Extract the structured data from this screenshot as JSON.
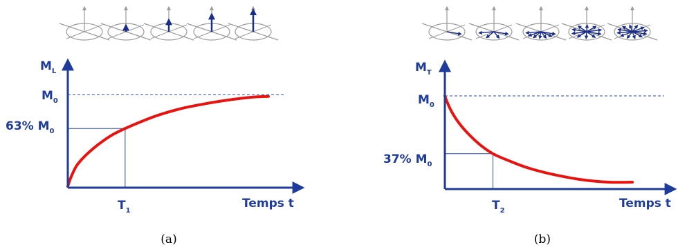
{
  "colors": {
    "axis": "#1f3b9b",
    "curve": "#e8130f",
    "guide": "#2a48b0",
    "dashed": "#2a48b0",
    "icon": "#9a9a9a",
    "vector": "#1a2d8a"
  },
  "chart_data": [
    {
      "type": "line",
      "panel_caption": "(a)",
      "ylabel_main": "M",
      "ylabel_sub": "L",
      "xlabel": "Temps t",
      "asymptote_label_main": "M",
      "asymptote_label_sub": "0",
      "marker_y_label_prefix": "63% M",
      "marker_y_label_sub": "0",
      "marker_x_label_main": "T",
      "marker_x_label_sub": "1",
      "asymptote_value": 1.0,
      "marker": {
        "x": 1.0,
        "y": 0.63
      },
      "xlim": [
        0,
        3.5
      ],
      "ylim": [
        0,
        1.08
      ],
      "curve_x": [
        0,
        0.05,
        0.15,
        0.3,
        0.5,
        0.75,
        1.0,
        1.3,
        1.6,
        2.0,
        2.4,
        2.8,
        3.2,
        3.5
      ],
      "curve_y": [
        0,
        0.09,
        0.22,
        0.33,
        0.44,
        0.55,
        0.63,
        0.71,
        0.78,
        0.85,
        0.9,
        0.94,
        0.97,
        0.98
      ],
      "icons": {
        "kind": "longitudinal",
        "arrow_lengths": [
          0,
          0.3,
          0.55,
          0.8,
          1.0
        ]
      }
    },
    {
      "type": "line",
      "panel_caption": "(b)",
      "ylabel_main": "M",
      "ylabel_sub": "T",
      "xlabel": "Temps t",
      "asymptote_label_main": "M",
      "asymptote_label_sub": "0",
      "marker_y_label_prefix": "37% M",
      "marker_y_label_sub": "0",
      "marker_x_label_main": "T",
      "marker_x_label_sub": "2",
      "asymptote_value": 1.0,
      "marker": {
        "x": 1.0,
        "y": 0.37
      },
      "xlim": [
        0,
        4.2
      ],
      "ylim": [
        0,
        1.15
      ],
      "curve_x": [
        0,
        0.05,
        0.15,
        0.3,
        0.5,
        0.75,
        1.0,
        1.3,
        1.7,
        2.2,
        2.8,
        3.4,
        3.9
      ],
      "curve_y": [
        1.0,
        0.93,
        0.82,
        0.7,
        0.58,
        0.46,
        0.37,
        0.3,
        0.22,
        0.15,
        0.09,
        0.06,
        0.06
      ],
      "icons": {
        "kind": "transverse",
        "fan_counts": [
          1,
          4,
          7,
          10,
          12
        ]
      }
    }
  ]
}
